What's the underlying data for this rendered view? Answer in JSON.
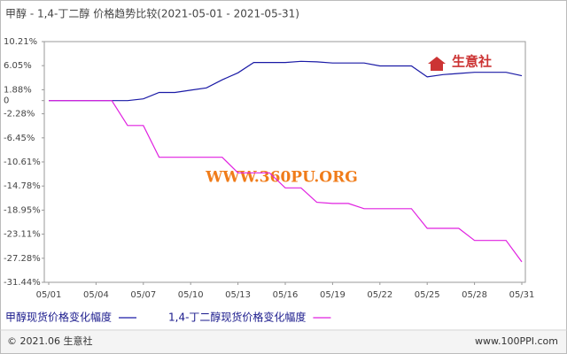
{
  "chart_data": {
    "type": "line",
    "title": "甲醇 - 1,4-丁二醇 价格趋势比较(2021-05-01 - 2021-05-31)",
    "categories": [
      "05/01",
      null,
      null,
      "05/04",
      null,
      null,
      "05/07",
      null,
      null,
      "05/10",
      null,
      null,
      "05/13",
      null,
      null,
      "05/16",
      null,
      null,
      "05/19",
      null,
      null,
      "05/22",
      null,
      null,
      "05/25",
      null,
      null,
      "05/28",
      null,
      null,
      "05/31"
    ],
    "series": [
      {
        "name": "甲醇现货价格变化幅度",
        "color": "#1a1aa6",
        "values": [
          0,
          0,
          0,
          0,
          0,
          0,
          0.3,
          1.4,
          1.4,
          1.8,
          2.2,
          3.6,
          4.8,
          6.6,
          6.6,
          6.6,
          6.8,
          6.7,
          6.5,
          6.5,
          6.5,
          6.0,
          6.0,
          6.0,
          4.1,
          4.5,
          4.7,
          4.9,
          4.9,
          4.9,
          4.3
        ]
      },
      {
        "name": "1,4-丁二醇现货价格变化幅度",
        "color": "#e020e0",
        "values": [
          0,
          0,
          0,
          0,
          0,
          -4.3,
          -4.3,
          -9.8,
          -9.8,
          -9.8,
          -9.8,
          -9.8,
          -12.5,
          -12.5,
          -12.5,
          -15.1,
          -15.1,
          -17.6,
          -17.8,
          -17.8,
          -18.7,
          -18.7,
          -18.7,
          -18.7,
          -22.1,
          -22.1,
          -22.1,
          -24.2,
          -24.2,
          -24.2,
          -27.9
        ]
      }
    ],
    "ylim": [
      -31.44,
      10.21
    ],
    "yticks": [
      {
        "value": 10.21,
        "label": "10.21%"
      },
      {
        "value": 6.05,
        "label": "6.05%"
      },
      {
        "value": 1.88,
        "label": "1.88%"
      },
      0,
      {
        "value": -2.28,
        "label": "-2.28%"
      },
      {
        "value": -6.45,
        "label": "-6.45%"
      },
      {
        "value": -10.61,
        "label": "-10.61%"
      },
      {
        "value": -14.78,
        "label": "-14.78%"
      },
      {
        "value": -18.95,
        "label": "-18.95%"
      },
      {
        "value": -23.11,
        "label": "-23.11%"
      },
      {
        "value": -27.28,
        "label": "-27.28%"
      },
      {
        "value": -31.44,
        "label": "-31.44%"
      }
    ],
    "watermark": "WWW.360PU.ORG",
    "logo": "生意社",
    "footer_left": "© 2021.06 生意社",
    "footer_right": "www.100PPI.com"
  }
}
